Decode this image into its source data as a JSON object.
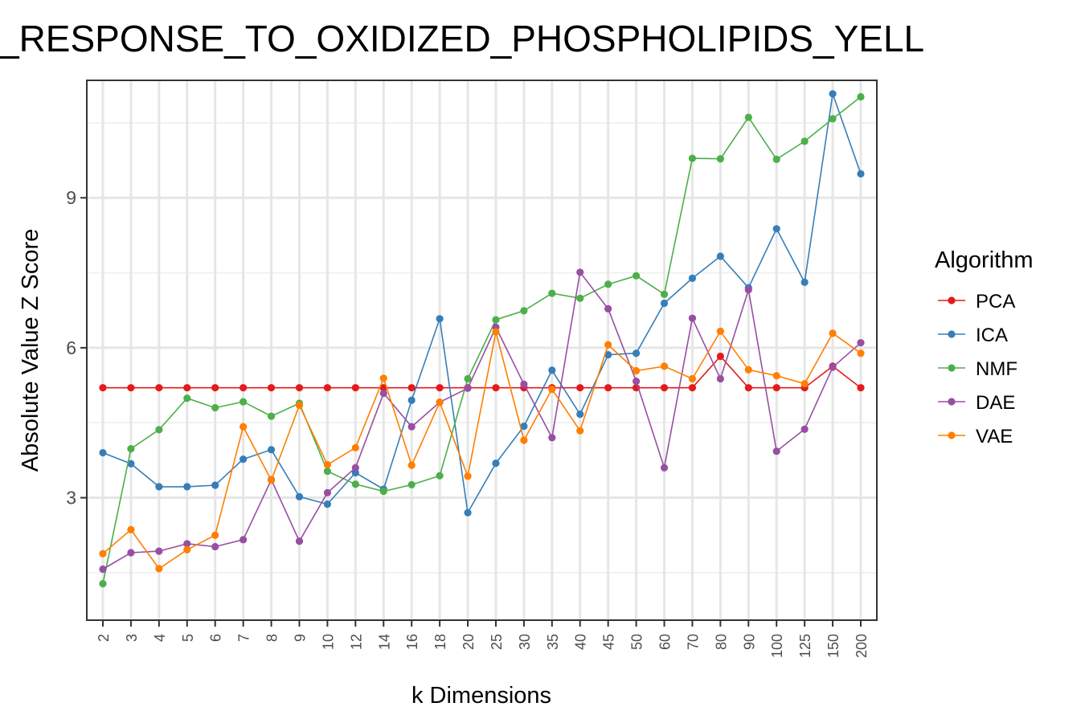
{
  "chart_data": {
    "type": "line",
    "title": "_RESPONSE_TO_OXIDIZED_PHOSPHOLIPIDS_YELL",
    "xlabel": "k Dimensions",
    "ylabel": "Absolute Value Z Score",
    "ylim": [
      0.55,
      11.35
    ],
    "yticks": [
      3,
      6,
      9
    ],
    "grid": true,
    "legend_position": "right",
    "legend_title": "Algorithm",
    "categories": [
      "2",
      "3",
      "4",
      "5",
      "6",
      "7",
      "8",
      "9",
      "10",
      "12",
      "14",
      "16",
      "18",
      "20",
      "25",
      "30",
      "35",
      "40",
      "45",
      "50",
      "60",
      "70",
      "80",
      "90",
      "100",
      "125",
      "150",
      "200"
    ],
    "series": [
      {
        "name": "PCA",
        "color": "#e41a1c",
        "values": [
          5.2,
          5.2,
          5.2,
          5.2,
          5.2,
          5.2,
          5.2,
          5.2,
          5.2,
          5.2,
          5.2,
          5.2,
          5.2,
          5.2,
          5.2,
          5.2,
          5.2,
          5.2,
          5.2,
          5.2,
          5.2,
          5.2,
          5.83,
          5.2,
          5.2,
          5.2,
          5.63,
          5.2
        ]
      },
      {
        "name": "ICA",
        "color": "#377eb8",
        "values": [
          3.9,
          3.68,
          3.22,
          3.22,
          3.25,
          3.77,
          3.96,
          3.02,
          2.87,
          3.5,
          3.17,
          4.95,
          6.58,
          2.7,
          3.69,
          4.43,
          5.55,
          4.67,
          5.86,
          5.89,
          6.89,
          7.39,
          7.83,
          7.2,
          8.38,
          7.31,
          11.08,
          9.48
        ]
      },
      {
        "name": "NMF",
        "color": "#4daf4a",
        "values": [
          1.28,
          3.98,
          4.36,
          4.99,
          4.8,
          4.92,
          4.63,
          4.89,
          3.53,
          3.27,
          3.13,
          3.26,
          3.44,
          5.38,
          6.56,
          6.74,
          7.09,
          6.99,
          7.27,
          7.44,
          7.07,
          9.79,
          9.78,
          10.61,
          9.77,
          10.13,
          10.58,
          11.02
        ]
      },
      {
        "name": "DAE",
        "color": "#984ea3",
        "values": [
          1.57,
          1.9,
          1.93,
          2.08,
          2.02,
          2.16,
          3.36,
          2.13,
          3.1,
          3.6,
          5.09,
          4.42,
          4.91,
          5.19,
          6.41,
          5.27,
          4.2,
          7.51,
          6.78,
          5.33,
          3.6,
          6.59,
          5.38,
          7.16,
          3.93,
          4.37,
          5.61,
          6.1
        ]
      },
      {
        "name": "VAE",
        "color": "#ff7f00",
        "values": [
          1.88,
          2.36,
          1.58,
          1.96,
          2.25,
          4.42,
          3.35,
          4.85,
          3.66,
          4.0,
          5.39,
          3.65,
          4.91,
          3.43,
          6.32,
          4.15,
          5.17,
          4.34,
          6.06,
          5.54,
          5.63,
          5.38,
          6.33,
          5.56,
          5.44,
          5.28,
          6.29,
          5.89
        ]
      }
    ]
  }
}
